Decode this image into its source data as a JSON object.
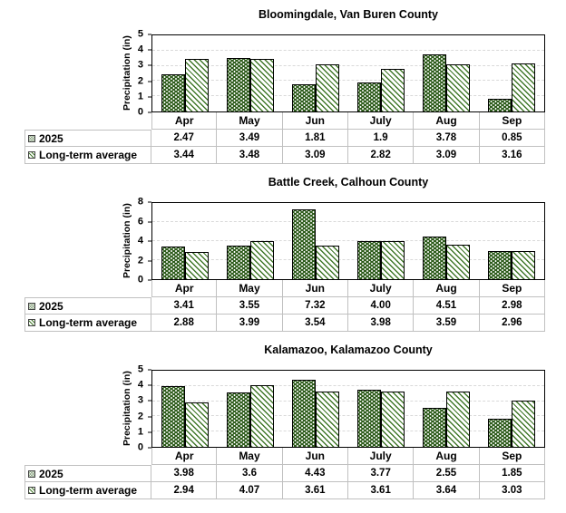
{
  "page": {
    "background": "#ffffff"
  },
  "colors": {
    "bar_2025_fill": "#2e5c1c",
    "bar_average_hatch": "#41782a",
    "axis_line": "#000000",
    "gridline": "#d9d9d9",
    "table_border": "#c0c0c0",
    "text": "#000000"
  },
  "legend": {
    "series_2025_label": "2025",
    "series_average_label": "Long-term average",
    "marker_2025": "dotted-green-square-icon",
    "marker_average": "diagonal-hatch-square-icon"
  },
  "chart_data": [
    {
      "type": "bar",
      "title": "Bloomingdale, Van Buren County",
      "ylabel": "Precipitation (in)",
      "xlabel": "",
      "categories": [
        "Apr",
        "May",
        "Jun",
        "July",
        "Aug",
        "Sep"
      ],
      "ylim": [
        0,
        5
      ],
      "ytick_step": 1,
      "grid": true,
      "legend_position": "data-table-left",
      "series": [
        {
          "name": "2025",
          "pattern": "dots",
          "values": [
            2.47,
            3.49,
            1.81,
            1.9,
            3.78,
            0.85
          ],
          "display": [
            "2.47",
            "3.49",
            "1.81",
            "1.9",
            "3.78",
            "0.85"
          ]
        },
        {
          "name": "Long-term average",
          "pattern": "diagonal",
          "values": [
            3.44,
            3.48,
            3.09,
            2.82,
            3.09,
            3.16
          ],
          "display": [
            "3.44",
            "3.48",
            "3.09",
            "2.82",
            "3.09",
            "3.16"
          ]
        }
      ]
    },
    {
      "type": "bar",
      "title": "Battle Creek, Calhoun County",
      "ylabel": "Precipitation (in)",
      "xlabel": "",
      "categories": [
        "Apr",
        "May",
        "Jun",
        "July",
        "Aug",
        "Sep"
      ],
      "ylim": [
        0,
        8
      ],
      "ytick_step": 2,
      "grid": true,
      "legend_position": "data-table-left",
      "series": [
        {
          "name": "2025",
          "pattern": "dots",
          "values": [
            3.41,
            3.55,
            7.32,
            4.0,
            4.51,
            2.98
          ],
          "display": [
            "3.41",
            "3.55",
            "7.32",
            "4.00",
            "4.51",
            "2.98"
          ]
        },
        {
          "name": "Long-term average",
          "pattern": "diagonal",
          "values": [
            2.88,
            3.99,
            3.54,
            3.98,
            3.59,
            2.96
          ],
          "display": [
            "2.88",
            "3.99",
            "3.54",
            "3.98",
            "3.59",
            "2.96"
          ]
        }
      ]
    },
    {
      "type": "bar",
      "title": "Kalamazoo, Kalamazoo County",
      "ylabel": "Precipitation (in)",
      "xlabel": "",
      "categories": [
        "Apr",
        "May",
        "Jun",
        "July",
        "Aug",
        "Sep"
      ],
      "ylim": [
        0,
        5
      ],
      "ytick_step": 1,
      "grid": true,
      "legend_position": "data-table-left",
      "series": [
        {
          "name": "2025",
          "pattern": "dots",
          "values": [
            3.98,
            3.6,
            4.43,
            3.77,
            2.55,
            1.85
          ],
          "display": [
            "3.98",
            "3.6",
            "4.43",
            "3.77",
            "2.55",
            "1.85"
          ]
        },
        {
          "name": "Long-term average",
          "pattern": "diagonal",
          "values": [
            2.94,
            4.07,
            3.61,
            3.61,
            3.64,
            3.03
          ],
          "display": [
            "2.94",
            "4.07",
            "3.61",
            "3.61",
            "3.64",
            "3.03"
          ]
        }
      ]
    }
  ]
}
